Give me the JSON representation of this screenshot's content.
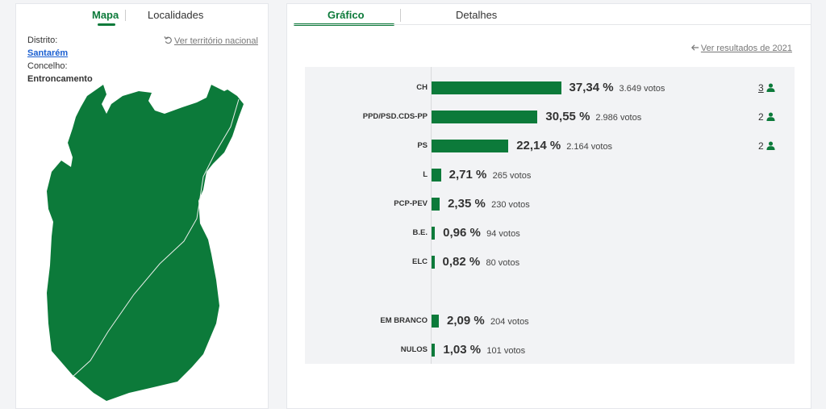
{
  "left_panel": {
    "tabs": [
      {
        "label": "Mapa",
        "active": true
      },
      {
        "label": "Localidades",
        "active": false
      }
    ],
    "distrito_label": "Distrito:",
    "distrito_value": "Santarém",
    "concelho_label": "Concelho:",
    "concelho_value": "Entroncamento",
    "national_link": "Ver território nacional"
  },
  "right_panel": {
    "tabs": [
      {
        "label": "Gráfico",
        "active": true
      },
      {
        "label": "Detalhes",
        "active": false
      }
    ],
    "results_link": "Ver resultados de 2021"
  },
  "colors": {
    "accent": "#0c7a3a",
    "map_fill": "#0c7a3a",
    "link": "#1a5fd1"
  },
  "icons": {
    "reset": "reset-arrow-icon",
    "back": "arrow-left-icon",
    "seat": "person-icon"
  },
  "chart_data": {
    "type": "bar",
    "orientation": "horizontal",
    "categories": [
      "CH",
      "PPD/PSD.CDS-PP",
      "PS",
      "L",
      "PCP-PEV",
      "B.E.",
      "ELC",
      "EM BRANCO",
      "NULOS"
    ],
    "percent_labels": [
      "37,34 %",
      "30,55 %",
      "22,14 %",
      "2,71 %",
      "2,35 %",
      "0,96 %",
      "0,82 %",
      "2,09 %",
      "1,03 %"
    ],
    "values": [
      37.34,
      30.55,
      22.14,
      2.71,
      2.35,
      0.96,
      0.82,
      2.09,
      1.03
    ],
    "votes_labels": [
      "3.649 votos",
      "2.986 votos",
      "2.164 votos",
      "265 votos",
      "230 votos",
      "94 votos",
      "80 votos",
      "204 votos",
      "101 votos"
    ],
    "seats": [
      "3",
      "2",
      "2",
      "",
      "",
      "",
      "",
      "",
      ""
    ],
    "xlim": [
      0,
      100
    ]
  }
}
